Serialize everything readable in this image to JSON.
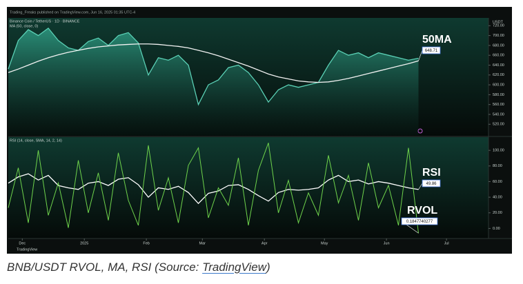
{
  "header": {
    "publisher": "Trading_Freaks published on TradingView.com, Jun 16, 2025 01:35 UTC-4",
    "watermark": "TradingView"
  },
  "caption": {
    "prefix": "BNB/USDT RVOL, MA, RSI (Source: ",
    "link": "TradingView",
    "suffix": ")"
  },
  "chart_data": [
    {
      "type": "line",
      "title": "Binance Coin / TetherUS · 1D · BINANCE",
      "subtitle": "MA (50, close, 0)",
      "y_unit": "USDT",
      "x": [
        0,
        5,
        10,
        15,
        20,
        25,
        30,
        35,
        40,
        45,
        50,
        55,
        60,
        65,
        70,
        75,
        80,
        85,
        90,
        95,
        100,
        105,
        110,
        115,
        120,
        125,
        130,
        135,
        140,
        145,
        150,
        155,
        160,
        165,
        170,
        175,
        180,
        185,
        190,
        195,
        200,
        205
      ],
      "xlim": [
        0,
        240
      ],
      "ylim": [
        498,
        733
      ],
      "yticks": [
        {
          "value": 520,
          "label": "520.00"
        },
        {
          "value": 540,
          "label": "540.00"
        },
        {
          "value": 560,
          "label": "560.00"
        },
        {
          "value": 580,
          "label": "580.00"
        },
        {
          "value": 600,
          "label": "600.00"
        },
        {
          "value": 620,
          "label": "620.00"
        },
        {
          "value": 640,
          "label": "640.00"
        },
        {
          "value": 660,
          "label": "660.00"
        },
        {
          "value": 680,
          "label": "680.00"
        },
        {
          "value": 700,
          "label": "700.00"
        },
        {
          "value": 720,
          "label": "720.00"
        }
      ],
      "series": [
        {
          "name": "BNB/USDT",
          "color": "#5ad0b5",
          "area": true,
          "values": [
            632,
            690,
            712,
            700,
            715,
            690,
            675,
            670,
            688,
            695,
            680,
            700,
            706,
            685,
            620,
            655,
            650,
            660,
            640,
            560,
            600,
            610,
            635,
            640,
            625,
            600,
            565,
            590,
            600,
            595,
            600,
            605,
            640,
            670,
            660,
            665,
            655,
            665,
            660,
            655,
            650,
            654
          ]
        },
        {
          "name": "50MA",
          "color": "#f2f2f2",
          "area": false,
          "values": [
            625,
            632,
            640,
            648,
            655,
            661,
            666,
            670,
            674,
            677,
            679,
            681,
            682,
            683,
            683,
            682,
            680,
            678,
            675,
            670,
            665,
            659,
            652,
            645,
            638,
            630,
            622,
            616,
            612,
            608,
            606,
            605,
            606,
            609,
            613,
            618,
            623,
            628,
            633,
            638,
            643,
            648.71
          ]
        }
      ]
    },
    {
      "type": "line",
      "title": "RSI (14, close, SMA, 14, 2, 14)",
      "x": [
        0,
        5,
        10,
        15,
        20,
        25,
        30,
        35,
        40,
        45,
        50,
        55,
        60,
        65,
        70,
        75,
        80,
        85,
        90,
        95,
        100,
        105,
        110,
        115,
        120,
        125,
        130,
        135,
        140,
        145,
        150,
        155,
        160,
        165,
        170,
        175,
        180,
        185,
        190,
        195,
        200,
        205
      ],
      "xlim": [
        0,
        240
      ],
      "xticks": [
        {
          "value": 7,
          "label": "Dec"
        },
        {
          "value": 38,
          "label": "2025"
        },
        {
          "value": 69,
          "label": "Feb"
        },
        {
          "value": 97,
          "label": "Mar"
        },
        {
          "value": 128,
          "label": "Apr"
        },
        {
          "value": 158,
          "label": "May"
        },
        {
          "value": 189,
          "label": "Jun"
        },
        {
          "value": 219,
          "label": "Jul"
        }
      ],
      "ylim": [
        -12,
        116
      ],
      "yticks": [
        {
          "value": 0,
          "label": "0.00"
        },
        {
          "value": 20,
          "label": "20.00"
        },
        {
          "value": 40,
          "label": "40.00"
        },
        {
          "value": 60,
          "label": "60.00"
        },
        {
          "value": 80,
          "label": "80.00"
        },
        {
          "value": 100,
          "label": "100.00"
        }
      ],
      "y2lim": [
        0,
        4
      ],
      "series": [
        {
          "name": "RSI",
          "color": "#ffffff",
          "values": [
            58,
            66,
            70,
            62,
            68,
            55,
            52,
            50,
            58,
            60,
            55,
            63,
            65,
            56,
            40,
            52,
            50,
            54,
            46,
            32,
            45,
            48,
            55,
            56,
            50,
            42,
            35,
            46,
            50,
            49,
            50,
            52,
            62,
            68,
            60,
            62,
            57,
            60,
            58,
            55,
            52,
            49.86
          ]
        },
        {
          "name": "RVOL",
          "color": "#6fd44c",
          "axis": "y2",
          "values": [
            1.2,
            2.8,
            0.6,
            3.5,
            0.9,
            2.2,
            0.4,
            3.1,
            1.0,
            2.6,
            0.7,
            3.4,
            1.5,
            0.5,
            3.7,
            1.1,
            2.4,
            0.6,
            2.9,
            3.6,
            0.8,
            2.0,
            1.3,
            3.2,
            0.5,
            2.7,
            3.8,
            1.0,
            2.3,
            0.6,
            1.8,
            0.9,
            3.3,
            1.4,
            2.5,
            0.7,
            3.0,
            1.2,
            2.1,
            0.5,
            3.6,
            0.1847740277
          ]
        }
      ]
    }
  ]
}
